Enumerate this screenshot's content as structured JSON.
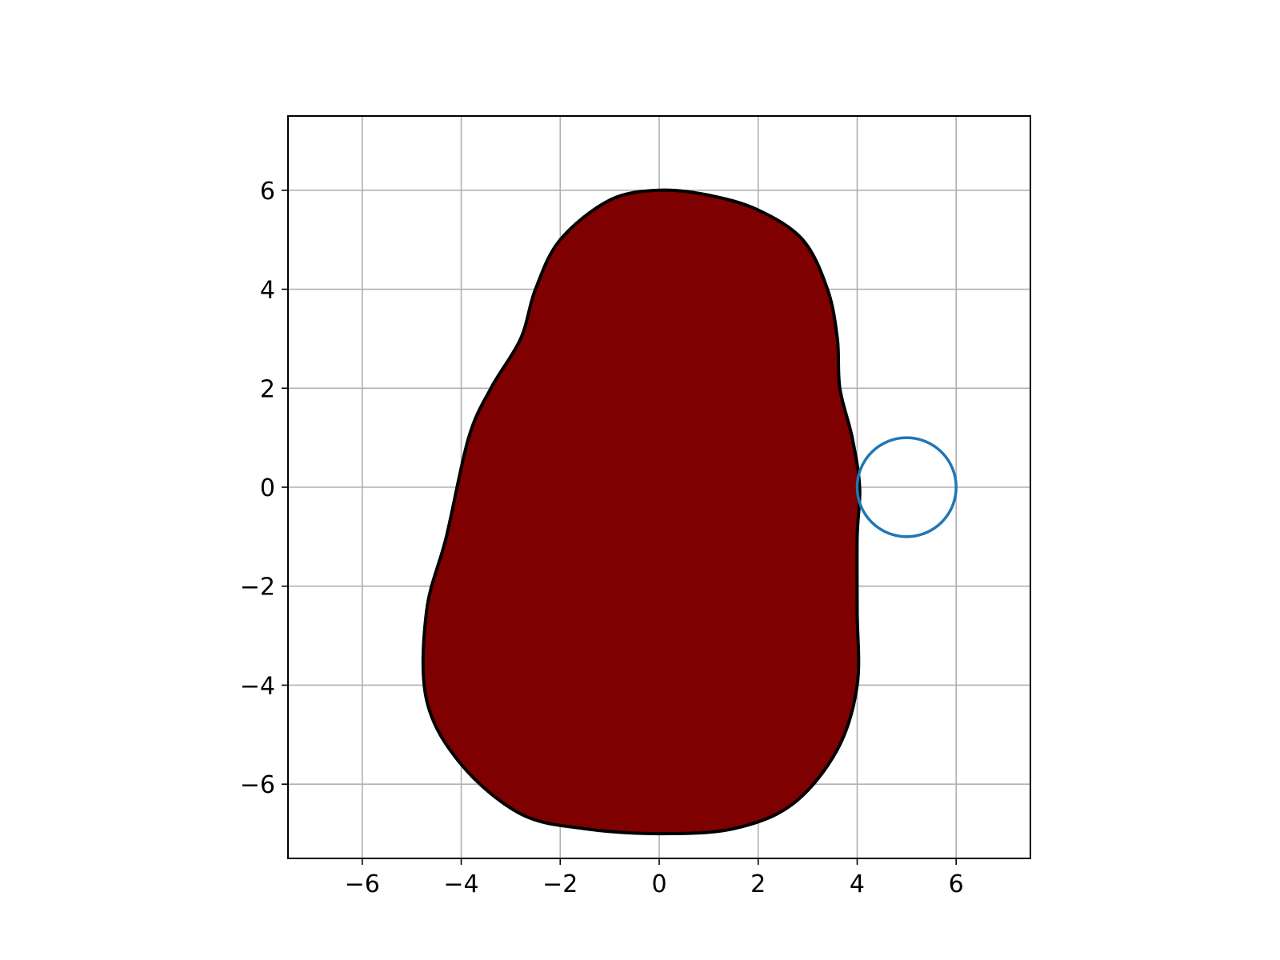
{
  "chart_data": {
    "type": "scatter",
    "title": "",
    "xlabel": "",
    "ylabel": "",
    "xlim": [
      -7.5,
      7.5
    ],
    "ylim": [
      -7.5,
      7.5
    ],
    "aspect": "equal",
    "grid": true,
    "legend": "none",
    "x_ticks": [
      -6,
      -4,
      -2,
      0,
      2,
      4,
      6
    ],
    "y_ticks": [
      -6,
      -4,
      -2,
      0,
      2,
      4,
      6
    ],
    "x_tick_labels": [
      "−6",
      "−4",
      "−2",
      "0",
      "2",
      "4",
      "6"
    ],
    "y_tick_labels": [
      "−6",
      "−4",
      "−2",
      "0",
      "2",
      "4",
      "6"
    ],
    "blob": {
      "fill_color": "#7f0000",
      "edge_color": "#000000",
      "points": [
        [
          0.0,
          6.0
        ],
        [
          1.0,
          5.9
        ],
        [
          2.0,
          5.6
        ],
        [
          2.9,
          5.0
        ],
        [
          3.4,
          4.0
        ],
        [
          3.6,
          3.0
        ],
        [
          3.65,
          2.0
        ],
        [
          3.9,
          1.0
        ],
        [
          4.05,
          0.0
        ],
        [
          4.0,
          -1.0
        ],
        [
          4.0,
          -2.5
        ],
        [
          4.0,
          -4.0
        ],
        [
          3.6,
          -5.3
        ],
        [
          2.7,
          -6.4
        ],
        [
          1.5,
          -6.9
        ],
        [
          0.0,
          -7.0
        ],
        [
          -1.5,
          -6.9
        ],
        [
          -2.8,
          -6.6
        ],
        [
          -4.0,
          -5.6
        ],
        [
          -4.7,
          -4.3
        ],
        [
          -4.7,
          -2.5
        ],
        [
          -4.3,
          -1.0
        ],
        [
          -3.85,
          1.0
        ],
        [
          -3.4,
          2.0
        ],
        [
          -2.8,
          3.0
        ],
        [
          -2.5,
          4.0
        ],
        [
          -2.0,
          5.0
        ],
        [
          -1.0,
          5.8
        ]
      ]
    },
    "circle": {
      "center": [
        5.0,
        0.0
      ],
      "radius": 1.0,
      "edge_color": "#1f77b4"
    }
  }
}
